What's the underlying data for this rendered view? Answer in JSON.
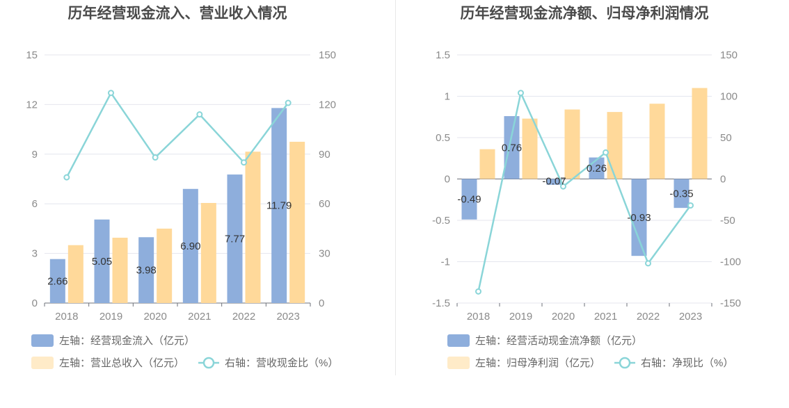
{
  "chart_data": [
    {
      "type": "bar",
      "title": "历年经营现金流入、营业收入情况",
      "categories": [
        "2018",
        "2019",
        "2020",
        "2021",
        "2022",
        "2023"
      ],
      "left_axis": {
        "ticks": [
          "0",
          "3",
          "6",
          "9",
          "12",
          "15"
        ],
        "ylim": [
          0,
          15
        ]
      },
      "right_axis": {
        "ticks": [
          "0",
          "30",
          "60",
          "90",
          "120",
          "150"
        ],
        "ylim": [
          0,
          150
        ]
      },
      "grid": true,
      "legend_position": "bottom",
      "series": [
        {
          "name": "左轴：经营现金流入（亿元）",
          "kind": "bar",
          "axis": "left",
          "color": "#8eaedc",
          "values": [
            2.66,
            5.05,
            3.98,
            6.9,
            7.77,
            11.79
          ],
          "labels": [
            "2.66",
            "5.05",
            "3.98",
            "6.90",
            "7.77",
            "11.79"
          ]
        },
        {
          "name": "左轴：营业总收入（亿元）",
          "kind": "bar",
          "axis": "left",
          "color": "#ffd99a",
          "values": [
            3.5,
            3.95,
            4.5,
            6.05,
            9.15,
            9.75
          ]
        },
        {
          "name": "右轴：营收现金比（%）",
          "kind": "line",
          "axis": "right",
          "color": "#8ad5d8",
          "values": [
            76,
            127,
            88,
            114,
            85,
            121
          ]
        }
      ]
    },
    {
      "type": "bar",
      "title": "历年经营现金流净额、归母净利润情况",
      "categories": [
        "2018",
        "2019",
        "2020",
        "2021",
        "2022",
        "2023"
      ],
      "left_axis": {
        "ticks": [
          "-1.5",
          "-1",
          "-0.5",
          "0",
          "0.5",
          "1",
          "1.5"
        ],
        "ylim": [
          -1.5,
          1.5
        ]
      },
      "right_axis": {
        "ticks": [
          "-150",
          "-100",
          "-50",
          "0",
          "50",
          "100",
          "150"
        ],
        "ylim": [
          -150,
          150
        ]
      },
      "grid": true,
      "legend_position": "bottom",
      "series": [
        {
          "name": "左轴：经营活动现金流净额（亿元）",
          "kind": "bar",
          "axis": "left",
          "color": "#8eaedc",
          "values": [
            -0.49,
            0.76,
            -0.07,
            0.26,
            -0.93,
            -0.35
          ],
          "labels": [
            "-0.49",
            "0.76",
            "-0.07",
            "0.26",
            "-0.93",
            "-0.35"
          ]
        },
        {
          "name": "左轴：归母净利润（亿元）",
          "kind": "bar",
          "axis": "left",
          "color": "#ffd99a",
          "values": [
            0.36,
            0.73,
            0.84,
            0.81,
            0.91,
            1.1
          ]
        },
        {
          "name": "右轴：净现比（%）",
          "kind": "line",
          "axis": "right",
          "color": "#8ad5d8",
          "values": [
            -136,
            104,
            -9,
            32,
            -102,
            -32
          ]
        }
      ]
    }
  ]
}
